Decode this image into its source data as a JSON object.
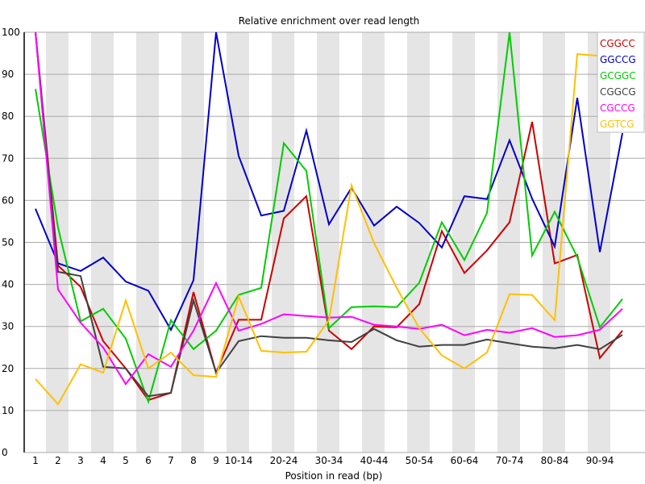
{
  "chart_data": {
    "type": "line",
    "title": "Relative enrichment over read length",
    "xlabel": "Position in read (bp)",
    "ylabel": "",
    "ylim": [
      0,
      100
    ],
    "yticks": [
      0,
      10,
      20,
      30,
      40,
      50,
      60,
      70,
      80,
      90,
      100
    ],
    "grid": true,
    "legend_position": "top-right",
    "categories": [
      "1",
      "2",
      "3",
      "4",
      "5",
      "6",
      "7",
      "8",
      "9",
      "10-14",
      "15-19",
      "20-24",
      "25-29",
      "30-34",
      "35-39",
      "40-44",
      "45-49",
      "50-54",
      "55-59",
      "60-64",
      "65-69",
      "70-74",
      "75-79",
      "80-84",
      "85-89",
      "90-94",
      "95-99"
    ],
    "visible_xtick_labels": [
      "1",
      "2",
      "3",
      "4",
      "5",
      "6",
      "7",
      "8",
      "9",
      "10-14",
      "",
      "20-24",
      "",
      "30-34",
      "",
      "40-44",
      "",
      "50-54",
      "",
      "60-64",
      "",
      "70-74",
      "",
      "80-84",
      "",
      "90-94",
      ""
    ],
    "series": [
      {
        "name": "CGGCC",
        "color": "#cc0000",
        "values": [
          100,
          44.5,
          39.4,
          26.5,
          20,
          12.5,
          14.2,
          38.2,
          19,
          31.6,
          31.6,
          55.7,
          61,
          29,
          24.6,
          30,
          29.8,
          35.3,
          52.7,
          42.7,
          48.1,
          54.8,
          78.7,
          45,
          47,
          22.5,
          29
        ]
      },
      {
        "name": "GGCCG",
        "color": "#0000cc",
        "values": [
          58,
          45,
          43.2,
          46.4,
          40.7,
          38.5,
          29.2,
          41,
          100,
          70.6,
          56.4,
          57.5,
          76.6,
          54.3,
          63,
          54,
          58.5,
          54.6,
          48.8,
          61,
          60.3,
          74.3,
          60.4,
          49,
          84.4,
          47.7,
          76
        ]
      },
      {
        "name": "GCGGC",
        "color": "#00cc00",
        "values": [
          86.5,
          53.5,
          31.2,
          34.2,
          27.1,
          12.1,
          31.5,
          24.6,
          29,
          37.5,
          39.2,
          73.6,
          67,
          29.6,
          34.6,
          34.8,
          34.6,
          40.4,
          54.8,
          45.8,
          57,
          100,
          46.9,
          57.3,
          46.5,
          29.8,
          36.5
        ]
      },
      {
        "name": "CGGCG",
        "color": "#404040",
        "values": [
          100,
          43,
          42,
          20.4,
          20,
          13.4,
          14.2,
          36.2,
          19,
          26.5,
          27.7,
          27.3,
          27.3,
          26.7,
          26.3,
          29.4,
          26.7,
          25.2,
          25.6,
          25.6,
          26.9,
          26,
          25.2,
          24.8,
          25.6,
          24.6,
          28
        ]
      },
      {
        "name": "CGCCG",
        "color": "#ff00ff",
        "values": [
          100,
          38.8,
          30.9,
          25,
          16.3,
          23.4,
          20.4,
          29,
          40.3,
          29,
          30.6,
          32.9,
          32.5,
          32.1,
          32.3,
          30.4,
          30,
          29.4,
          30.4,
          27.9,
          29.2,
          28.5,
          29.6,
          27.5,
          27.9,
          29.2,
          34.2
        ]
      },
      {
        "name": "GGTCG",
        "color": "#ffc000",
        "values": [
          17.5,
          11.5,
          21,
          19,
          36.2,
          20,
          23.8,
          18.4,
          18,
          37.1,
          24.2,
          23.8,
          24,
          31.5,
          63.6,
          49.8,
          39.2,
          29.6,
          23.1,
          20,
          23.8,
          37.7,
          37.5,
          31.5,
          94.8,
          94.4,
          100
        ]
      }
    ]
  }
}
